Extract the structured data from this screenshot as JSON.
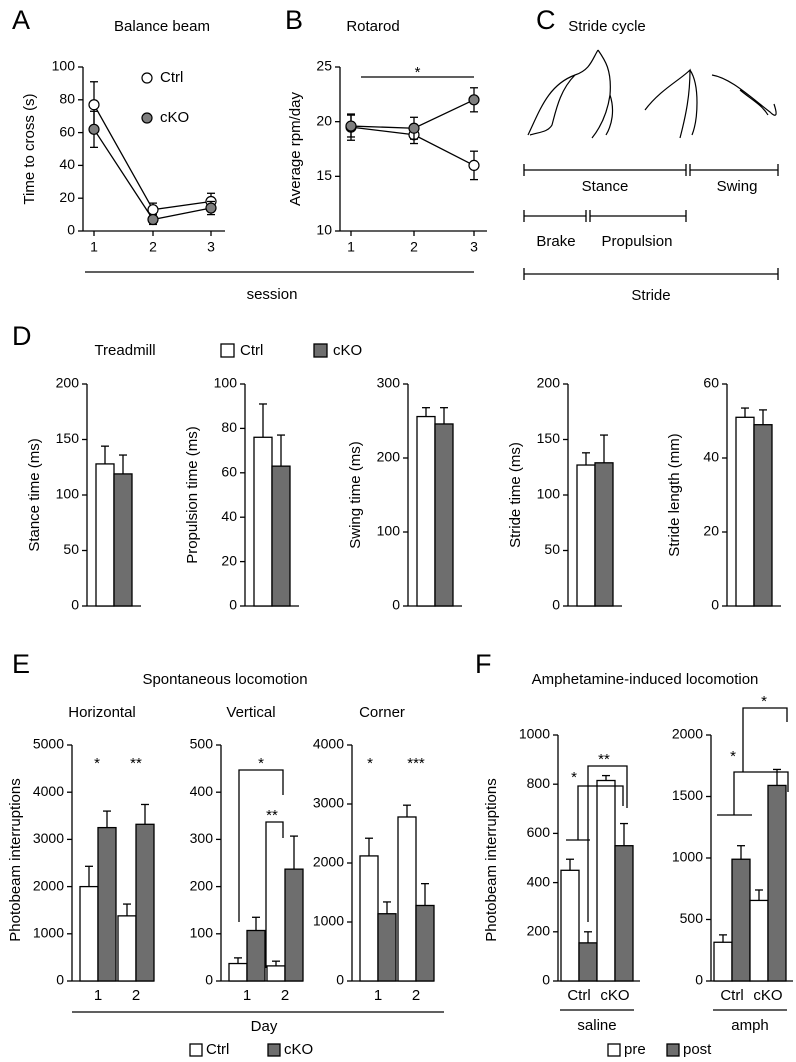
{
  "chart_data": [
    {
      "type": "line",
      "panel": "A",
      "title": "Balance beam",
      "ylabel": "Time to cross (s)",
      "xlabel": "session",
      "categories": [
        "1",
        "2",
        "3"
      ],
      "ylim": [
        0,
        100
      ],
      "yticks": [
        0,
        20,
        40,
        60,
        80,
        100
      ],
      "series": [
        {
          "name": "Ctrl",
          "color": "#ffffff",
          "values": [
            77,
            13,
            18
          ],
          "errors": [
            14,
            4,
            5
          ]
        },
        {
          "name": "cKO",
          "color": "#7f7f7f",
          "values": [
            62,
            7,
            14
          ],
          "errors": [
            11,
            3,
            4
          ]
        }
      ]
    },
    {
      "type": "line",
      "panel": "B",
      "title": "Rotarod",
      "ylabel": "Average rpm/day",
      "categories": [
        "1",
        "2",
        "3"
      ],
      "ylim": [
        10,
        25
      ],
      "yticks": [
        10,
        15,
        20,
        25
      ],
      "annotations": [
        "*"
      ],
      "series": [
        {
          "color": "#ffffff",
          "values": [
            19.5,
            18.8,
            16.0
          ],
          "errors": [
            1.2,
            0.8,
            1.3
          ]
        },
        {
          "color": "#7f7f7f",
          "values": [
            19.6,
            19.4,
            22.0
          ],
          "errors": [
            1.0,
            1.0,
            1.1
          ]
        }
      ]
    },
    {
      "type": "diagram",
      "panel": "C",
      "title": "Stride cycle",
      "labels": [
        "Stance",
        "Swing",
        "Brake",
        "Propulsion",
        "Stride"
      ]
    },
    {
      "type": "bar",
      "panel": "D",
      "title": "Treadmill",
      "legend": [
        {
          "name": "Ctrl",
          "color": "#ffffff"
        },
        {
          "name": "cKO",
          "color": "#6e6e6e"
        }
      ],
      "subplots": [
        {
          "ylabel": "Stance time (ms)",
          "ylim": [
            0,
            200
          ],
          "yticks": [
            0,
            50,
            100,
            150,
            200
          ],
          "values": [
            128,
            119
          ],
          "errors": [
            16,
            17
          ]
        },
        {
          "ylabel": "Propulsion time (ms)",
          "ylim": [
            0,
            100
          ],
          "yticks": [
            0,
            20,
            40,
            60,
            80,
            100
          ],
          "values": [
            76,
            63
          ],
          "errors": [
            15,
            14
          ]
        },
        {
          "ylabel": "Swing time (ms)",
          "ylim": [
            0,
            300
          ],
          "yticks": [
            0,
            100,
            200,
            300
          ],
          "values": [
            256,
            246
          ],
          "errors": [
            12,
            22
          ]
        },
        {
          "ylabel": "Stride time (ms)",
          "ylim": [
            0,
            200
          ],
          "yticks": [
            0,
            50,
            100,
            150,
            200
          ],
          "values": [
            127,
            129
          ],
          "errors": [
            11,
            25
          ]
        },
        {
          "ylabel": "Stride length (mm)",
          "ylim": [
            0,
            60
          ],
          "yticks": [
            0,
            20,
            40,
            60
          ],
          "values": [
            51,
            49
          ],
          "errors": [
            2.5,
            4
          ]
        }
      ]
    },
    {
      "type": "grouped-bar",
      "panel": "E",
      "title": "Spontaneous locomotion",
      "ylabel": "Photobeam interruptions",
      "xlabel": "Day",
      "legend": [
        {
          "name": "Ctrl",
          "color": "#ffffff"
        },
        {
          "name": "cKO",
          "color": "#6e6e6e"
        }
      ],
      "subplots": [
        {
          "title": "Horizontal",
          "categories": [
            "1",
            "2"
          ],
          "ylim": [
            0,
            5000
          ],
          "yticks": [
            0,
            1000,
            2000,
            3000,
            4000,
            5000
          ],
          "series": [
            {
              "values": [
                2000,
                1380
              ],
              "errors": [
                430,
                250
              ]
            },
            {
              "values": [
                3250,
                3320
              ],
              "errors": [
                350,
                420
              ]
            }
          ],
          "annotations": [
            "*",
            "**"
          ]
        },
        {
          "title": "Vertical",
          "categories": [
            "1",
            "2"
          ],
          "ylim": [
            0,
            500
          ],
          "yticks": [
            0,
            100,
            200,
            300,
            400,
            500
          ],
          "series": [
            {
              "values": [
                37,
                32
              ],
              "errors": [
                12,
                10
              ]
            },
            {
              "values": [
                107,
                237
              ],
              "errors": [
                28,
                70
              ]
            }
          ],
          "annotations": [
            "*",
            "**"
          ]
        },
        {
          "title": "Corner",
          "categories": [
            "1",
            "2"
          ],
          "ylim": [
            0,
            4000
          ],
          "yticks": [
            0,
            1000,
            2000,
            3000,
            4000
          ],
          "series": [
            {
              "values": [
                2120,
                2780
              ],
              "errors": [
                300,
                200
              ]
            },
            {
              "values": [
                1140,
                1280
              ],
              "errors": [
                200,
                370
              ]
            }
          ],
          "annotations": [
            "*",
            "***"
          ]
        }
      ]
    },
    {
      "type": "grouped-bar",
      "panel": "F",
      "title": "Amphetamine-induced locomotion",
      "ylabel": "Photobeam interruptions",
      "legend": [
        {
          "name": "pre",
          "color": "#ffffff"
        },
        {
          "name": "post",
          "color": "#6e6e6e"
        }
      ],
      "subplots": [
        {
          "group_label": "saline",
          "categories": [
            "Ctrl",
            "cKO"
          ],
          "ylim": [
            0,
            1000
          ],
          "yticks": [
            0,
            200,
            400,
            600,
            800,
            1000
          ],
          "series": [
            {
              "values": [
                450,
                815
              ],
              "errors": [
                45,
                20
              ]
            },
            {
              "values": [
                155,
                550
              ],
              "errors": [
                45,
                90
              ]
            }
          ],
          "annotations": [
            "*",
            "**"
          ]
        },
        {
          "group_label": "amph",
          "categories": [
            "Ctrl",
            "cKO"
          ],
          "ylim": [
            0,
            2000
          ],
          "yticks": [
            0,
            500,
            1000,
            1500,
            2000
          ],
          "series": [
            {
              "values": [
                315,
                655
              ],
              "errors": [
                60,
                85
              ]
            },
            {
              "values": [
                990,
                1590
              ],
              "errors": [
                110,
                130
              ]
            }
          ],
          "annotations": [
            "*",
            "*"
          ]
        }
      ]
    }
  ]
}
